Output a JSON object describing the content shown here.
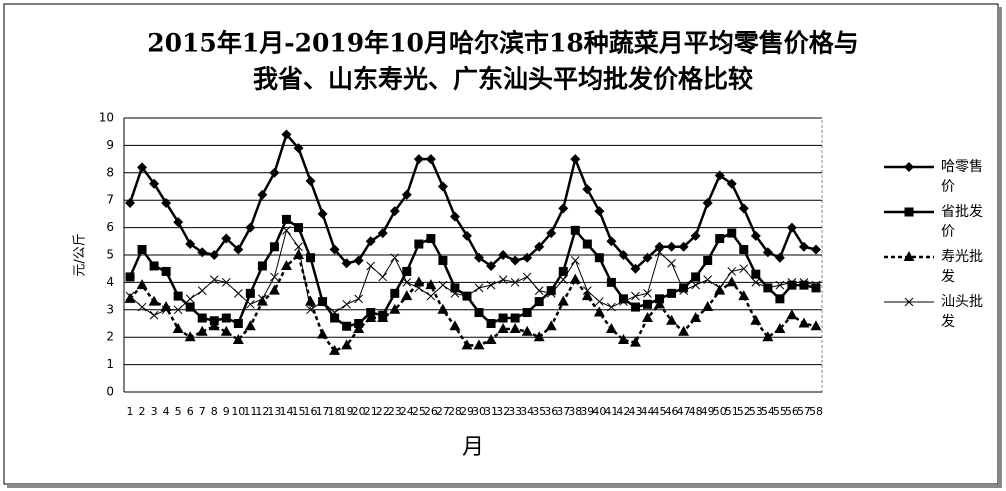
{
  "chart_data": {
    "type": "line",
    "title": [
      "2015年1月-2019年10月哈尔滨市18种蔬菜月平均零售价格与",
      "我省、山东寿光、广东汕头平均批发价格比较"
    ],
    "x_label": "月",
    "y_label": "元/公斤",
    "categories": [
      "1",
      "2",
      "3",
      "4",
      "5",
      "6",
      "7",
      "8",
      "9",
      "10",
      "11",
      "12",
      "13",
      "14",
      "15",
      "16",
      "17",
      "18",
      "19",
      "20",
      "21",
      "22",
      "23",
      "24",
      "25",
      "26",
      "27",
      "28",
      "29",
      "30",
      "31",
      "32",
      "33",
      "34",
      "35",
      "36",
      "37",
      "38",
      "39",
      "40",
      "41",
      "42",
      "43",
      "44",
      "45",
      "46",
      "47",
      "48",
      "49",
      "50",
      "51",
      "52",
      "53",
      "54",
      "55",
      "56",
      "57",
      "58"
    ],
    "ylim": [
      0,
      10
    ],
    "yticks": [
      0,
      1,
      2,
      3,
      4,
      5,
      6,
      7,
      8,
      9,
      10
    ],
    "grid": true,
    "legend": "right",
    "series": [
      {
        "name": "哈零售价",
        "color": "#000000",
        "marker": "diamond",
        "values": [
          6.9,
          8.2,
          7.6,
          6.9,
          6.2,
          5.4,
          5.1,
          5.0,
          5.6,
          5.2,
          6.0,
          7.2,
          8.0,
          9.4,
          8.9,
          7.7,
          6.5,
          5.2,
          4.7,
          4.8,
          5.5,
          5.8,
          6.6,
          7.2,
          8.5,
          8.5,
          7.5,
          6.4,
          5.7,
          4.9,
          4.6,
          5.0,
          4.8,
          4.9,
          5.3,
          5.8,
          6.7,
          8.5,
          7.4,
          6.6,
          5.5,
          5.0,
          4.5,
          4.9,
          5.3,
          5.3,
          5.3,
          5.7,
          6.9,
          7.9,
          7.6,
          6.7,
          5.7,
          5.1,
          4.9,
          6.0,
          5.3,
          5.2
        ]
      },
      {
        "name": "省批发价",
        "color": "#000000",
        "marker": "square",
        "values": [
          4.2,
          5.2,
          4.6,
          4.4,
          3.5,
          3.1,
          2.7,
          2.6,
          2.7,
          2.5,
          3.6,
          4.6,
          5.3,
          6.3,
          6.0,
          4.9,
          3.3,
          2.7,
          2.4,
          2.5,
          2.9,
          2.8,
          3.6,
          4.4,
          5.4,
          5.6,
          4.8,
          3.8,
          3.5,
          2.9,
          2.5,
          2.7,
          2.7,
          2.9,
          3.3,
          3.7,
          4.4,
          5.9,
          5.4,
          4.9,
          4.0,
          3.4,
          3.1,
          3.2,
          3.4,
          3.6,
          3.8,
          4.2,
          4.8,
          5.6,
          5.8,
          5.2,
          4.3,
          3.8,
          3.4,
          3.9,
          3.9,
          3.8
        ]
      },
      {
        "name": "寿光批发",
        "color": "#000000",
        "marker": "triangle",
        "dashed": true,
        "values": [
          3.4,
          3.9,
          3.3,
          3.1,
          2.3,
          2.0,
          2.2,
          2.4,
          2.2,
          1.9,
          2.4,
          3.3,
          3.7,
          4.6,
          5.0,
          3.3,
          2.1,
          1.5,
          1.7,
          2.3,
          2.7,
          2.7,
          3.0,
          3.5,
          4.0,
          3.9,
          3.0,
          2.4,
          1.7,
          1.7,
          1.9,
          2.3,
          2.3,
          2.2,
          2.0,
          2.4,
          3.3,
          4.1,
          3.5,
          2.9,
          2.3,
          1.9,
          1.8,
          2.7,
          3.2,
          2.6,
          2.2,
          2.7,
          3.1,
          3.7,
          4.0,
          3.5,
          2.6,
          2.0,
          2.3,
          2.8,
          2.5,
          2.4
        ]
      },
      {
        "name": "汕头批发",
        "color": "#000000",
        "marker": "x",
        "values": [
          3.5,
          3.1,
          2.8,
          3.0,
          3.0,
          3.4,
          3.7,
          4.1,
          4.0,
          3.6,
          3.2,
          3.4,
          4.2,
          5.9,
          5.3,
          3.0,
          3.3,
          2.9,
          3.2,
          3.4,
          4.6,
          4.2,
          4.9,
          4.0,
          3.8,
          3.5,
          3.9,
          3.6,
          3.5,
          3.8,
          3.9,
          4.1,
          4.0,
          4.2,
          3.7,
          3.6,
          4.1,
          4.8,
          3.7,
          3.3,
          3.1,
          3.3,
          3.5,
          3.6,
          5.1,
          4.7,
          3.7,
          3.9,
          4.1,
          3.8,
          4.4,
          4.5,
          4.0,
          3.8,
          3.9,
          4.0,
          4.0,
          3.9
        ]
      }
    ]
  }
}
